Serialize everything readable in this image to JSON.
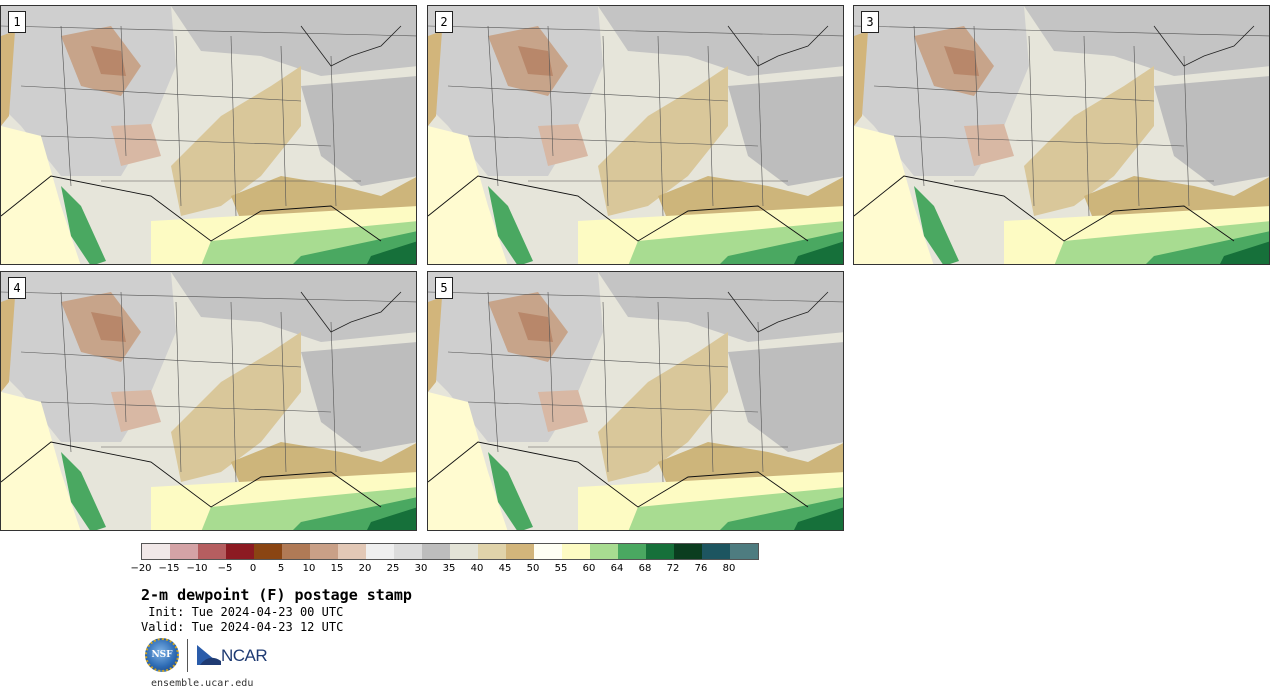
{
  "panels": [
    {
      "label": "1"
    },
    {
      "label": "2"
    },
    {
      "label": "3"
    },
    {
      "label": "4"
    },
    {
      "label": "5"
    }
  ],
  "colorbar": {
    "colors": [
      "#f1e8e8",
      "#d4a3a6",
      "#b55e60",
      "#8c1a22",
      "#8a4513",
      "#b07a56",
      "#c9a087",
      "#e2c8b6",
      "#efefef",
      "#dcdcdc",
      "#bdbdbd",
      "#e3e3d7",
      "#e0d3aa",
      "#d2b57b",
      "#fffff4",
      "#fdfbc3",
      "#a8dc91",
      "#4aa861",
      "#16703a",
      "#0b3d1f",
      "#1d5560",
      "#4e7c80"
    ],
    "ticks": [
      "−20",
      "−15",
      "−10",
      "−5",
      "0",
      "5",
      "10",
      "15",
      "20",
      "25",
      "30",
      "35",
      "40",
      "45",
      "50",
      "55",
      "60",
      "64",
      "68",
      "72",
      "76",
      "80"
    ]
  },
  "title": "2-m dewpoint (F) postage stamp",
  "init": " Init: Tue 2024-04-23 00 UTC",
  "valid": "Valid: Tue 2024-04-23 12 UTC",
  "logos": {
    "nsf": "NSF",
    "ncar": "NCAR"
  },
  "url": "ensemble.ucar.edu"
}
